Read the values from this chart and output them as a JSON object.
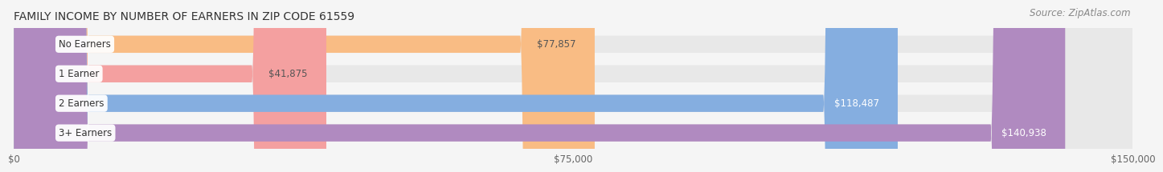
{
  "title": "FAMILY INCOME BY NUMBER OF EARNERS IN ZIP CODE 61559",
  "source": "Source: ZipAtlas.com",
  "categories": [
    "No Earners",
    "1 Earner",
    "2 Earners",
    "3+ Earners"
  ],
  "values": [
    77857,
    41875,
    118487,
    140938
  ],
  "labels": [
    "$77,857",
    "$41,875",
    "$118,487",
    "$140,938"
  ],
  "bar_colors": [
    "#f9bc84",
    "#f4a0a0",
    "#85aee0",
    "#b08ac0"
  ],
  "label_colors": [
    "#555555",
    "#555555",
    "#ffffff",
    "#ffffff"
  ],
  "x_ticks": [
    0,
    75000,
    150000
  ],
  "x_tick_labels": [
    "$0",
    "$75,000",
    "$150,000"
  ],
  "xlim": [
    0,
    150000
  ],
  "background_color": "#f5f5f5",
  "bar_bg_color": "#e8e8e8",
  "title_fontsize": 10,
  "source_fontsize": 8.5,
  "label_fontsize": 8.5,
  "category_fontsize": 8.5
}
